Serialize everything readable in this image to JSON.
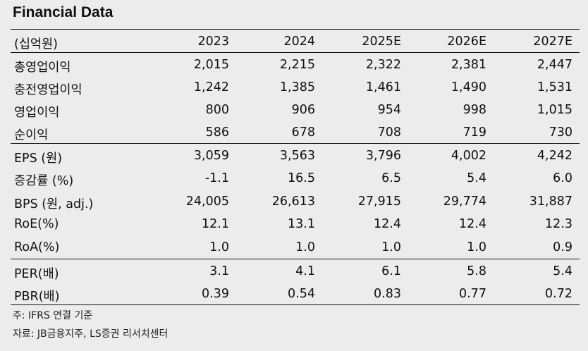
{
  "title": "Financial Data",
  "header": {
    "label": "(십억원)",
    "years": [
      "2023",
      "2024",
      "2025E",
      "2026E",
      "2027E"
    ]
  },
  "rows": [
    {
      "label": "총영업이익",
      "values": [
        "2,015",
        "2,215",
        "2,322",
        "2,381",
        "2,447"
      ]
    },
    {
      "label": "충전영업이익",
      "values": [
        "1,242",
        "1,385",
        "1,461",
        "1,490",
        "1,531"
      ]
    },
    {
      "label": "영업이익",
      "values": [
        "800",
        "906",
        "954",
        "998",
        "1,015"
      ]
    },
    {
      "label": "순이익",
      "values": [
        "586",
        "678",
        "708",
        "719",
        "730"
      ]
    },
    {
      "label": "EPS (원)",
      "values": [
        "3,059",
        "3,563",
        "3,796",
        "4,002",
        "4,242"
      ]
    },
    {
      "label": "증감률 (%)",
      "values": [
        "-1.1",
        "16.5",
        "6.5",
        "5.4",
        "6.0"
      ]
    },
    {
      "label": "BPS (원, adj.)",
      "values": [
        "24,005",
        "26,613",
        "27,915",
        "29,774",
        "31,887"
      ]
    },
    {
      "label": "RoE(%)",
      "values": [
        "12.1",
        "13.1",
        "12.4",
        "12.4",
        "12.3"
      ]
    },
    {
      "label": "RoA(%)",
      "values": [
        "1.0",
        "1.0",
        "1.0",
        "1.0",
        "0.9"
      ]
    },
    {
      "label": "PER(배)",
      "values": [
        "3.1",
        "4.1",
        "6.1",
        "5.8",
        "5.4"
      ]
    },
    {
      "label": "PBR(배)",
      "values": [
        "0.39",
        "0.54",
        "0.83",
        "0.77",
        "0.72"
      ]
    }
  ],
  "notes": [
    "주: IFRS 연결 기준",
    "자료: JB금융지주, LS증권 리서치센터"
  ]
}
